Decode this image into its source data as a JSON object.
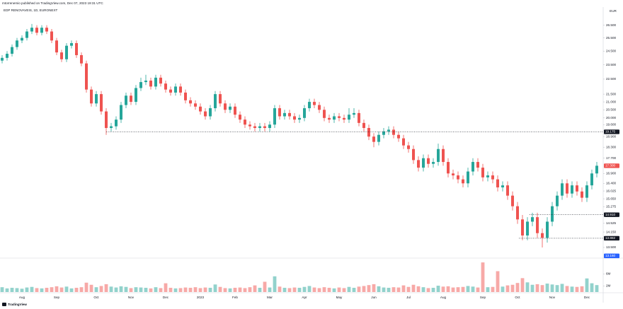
{
  "chart_data": {
    "type": "candlestick",
    "header": "mtorrenemio published on TradingView.com, Dec 07, 2023 19:31 UTC",
    "title": "EDP RENOVAVEIS, 1D, EURONEXT",
    "currency": "EUR",
    "logo": "TradingView",
    "log_scale": true,
    "grid": false,
    "up_color": "#26a69a",
    "down_color": "#ef5350",
    "categories": [
      null,
      null,
      null,
      null,
      "Aug",
      null,
      null,
      null,
      null,
      null,
      null,
      "Sep",
      null,
      null,
      null,
      null,
      null,
      null,
      null,
      "Oct",
      null,
      null,
      null,
      null,
      null,
      null,
      "Nov",
      null,
      null,
      null,
      null,
      null,
      null,
      "Dec",
      null,
      null,
      null,
      null,
      null,
      null,
      "2023",
      null,
      null,
      null,
      null,
      null,
      null,
      "Feb",
      null,
      null,
      null,
      null,
      null,
      null,
      "Mar",
      null,
      null,
      null,
      null,
      null,
      null,
      "Apr",
      null,
      null,
      null,
      null,
      null,
      null,
      "May",
      null,
      null,
      null,
      null,
      null,
      null,
      "Jun",
      null,
      null,
      null,
      null,
      null,
      null,
      "Jul",
      null,
      null,
      null,
      null,
      null,
      null,
      "Aug",
      null,
      null,
      null,
      null,
      null,
      null,
      null,
      "Sep",
      null,
      null,
      null,
      null,
      null,
      null,
      "Oct",
      null,
      null,
      null,
      null,
      null,
      null,
      "Nov",
      null,
      null,
      null,
      null,
      null,
      null,
      "Dec",
      null,
      null
    ],
    "open": [
      23.8,
      24.0,
      24.3,
      24.8,
      25.3,
      25.5,
      26.0,
      26.3,
      25.9,
      26.3,
      26.0,
      25.3,
      24.4,
      23.9,
      24.9,
      25.1,
      24.2,
      23.6,
      21.8,
      20.9,
      21.5,
      20.4,
      19.4,
      19.5,
      19.9,
      20.8,
      21.4,
      21.0,
      21.9,
      22.3,
      22.4,
      22.0,
      22.6,
      22.2,
      21.8,
      21.6,
      22.0,
      21.6,
      21.1,
      20.9,
      20.7,
      20.4,
      20.1,
      20.6,
      21.5,
      20.9,
      20.5,
      20.7,
      20.2,
      19.9,
      19.6,
      19.5,
      19.4,
      19.5,
      19.4,
      19.6,
      20.6,
      20.1,
      20.3,
      20.1,
      19.9,
      20.0,
      20.6,
      21.0,
      20.8,
      20.5,
      20.0,
      19.9,
      20.1,
      20.0,
      19.9,
      20.2,
      20.3,
      19.7,
      19.4,
      18.9,
      18.6,
      19.0,
      19.2,
      19.3,
      19.0,
      18.8,
      18.4,
      18.2,
      17.6,
      17.2,
      17.7,
      17.4,
      17.5,
      18.2,
      17.5,
      16.9,
      16.8,
      16.6,
      16.4,
      17.0,
      17.5,
      17.2,
      16.7,
      16.8,
      16.6,
      16.2,
      16.3,
      15.8,
      15.3,
      14.7,
      14.0,
      14.6,
      14.8,
      14.1,
      13.9,
      14.6,
      15.3,
      15.8,
      16.4,
      15.9,
      16.3,
      16.0,
      15.7,
      16.3,
      16.9
    ],
    "high": [
      24.2,
      24.5,
      25.0,
      25.5,
      25.7,
      26.2,
      26.6,
      26.5,
      26.5,
      26.5,
      26.2,
      25.5,
      24.6,
      25.1,
      25.3,
      25.3,
      24.4,
      23.8,
      22.0,
      21.7,
      21.7,
      20.6,
      19.7,
      20.1,
      21.0,
      21.6,
      21.6,
      22.1,
      22.6,
      22.8,
      22.6,
      22.8,
      22.8,
      22.4,
      22.0,
      22.2,
      22.2,
      21.8,
      21.3,
      21.1,
      20.9,
      20.6,
      20.8,
      21.7,
      21.7,
      21.1,
      20.9,
      20.9,
      20.4,
      20.1,
      19.8,
      19.7,
      19.7,
      19.7,
      19.8,
      20.8,
      20.8,
      20.5,
      20.5,
      20.3,
      20.2,
      20.8,
      21.2,
      21.2,
      21.0,
      20.7,
      20.2,
      20.3,
      20.3,
      20.2,
      20.6,
      20.6,
      20.5,
      19.9,
      19.6,
      19.1,
      19.2,
      19.4,
      19.5,
      19.5,
      19.2,
      19.0,
      18.6,
      18.4,
      17.8,
      17.9,
      17.9,
      17.7,
      18.5,
      18.4,
      17.7,
      17.1,
      17.0,
      16.8,
      17.2,
      17.7,
      17.7,
      17.4,
      17.0,
      17.0,
      16.8,
      16.5,
      16.5,
      16.0,
      15.5,
      14.9,
      14.8,
      15.0,
      15.0,
      14.3,
      14.8,
      15.5,
      16.0,
      16.6,
      16.6,
      16.5,
      16.5,
      16.2,
      16.5,
      17.1,
      17.5
    ],
    "low": [
      23.6,
      23.8,
      24.1,
      24.6,
      25.1,
      25.3,
      25.8,
      25.7,
      25.7,
      25.8,
      25.1,
      24.2,
      23.7,
      23.7,
      24.7,
      24.0,
      23.4,
      21.6,
      20.7,
      20.7,
      20.2,
      19.0,
      19.2,
      19.3,
      19.7,
      20.6,
      20.8,
      20.8,
      21.7,
      22.1,
      21.8,
      21.8,
      22.0,
      21.6,
      21.4,
      21.4,
      21.4,
      20.9,
      20.7,
      20.5,
      20.2,
      19.9,
      19.9,
      20.4,
      20.7,
      20.3,
      20.3,
      20.0,
      19.7,
      19.4,
      19.3,
      19.2,
      19.2,
      19.2,
      19.2,
      19.4,
      19.9,
      19.9,
      19.9,
      19.7,
      19.7,
      19.8,
      20.4,
      20.6,
      20.3,
      19.8,
      19.7,
      19.7,
      19.8,
      19.7,
      19.7,
      20.0,
      19.5,
      19.2,
      18.7,
      18.3,
      18.4,
      18.8,
      19.0,
      18.8,
      18.6,
      18.2,
      18.0,
      17.4,
      17.0,
      17.0,
      17.2,
      17.2,
      17.3,
      17.3,
      16.7,
      16.6,
      16.4,
      16.2,
      16.2,
      16.8,
      17.0,
      16.5,
      16.5,
      16.4,
      16.0,
      16.0,
      15.6,
      15.1,
      14.5,
      13.8,
      13.8,
      14.4,
      13.9,
      13.5,
      13.7,
      14.4,
      15.1,
      15.6,
      15.7,
      15.7,
      15.8,
      15.5,
      15.5,
      16.1,
      16.7
    ],
    "close": [
      24.0,
      24.3,
      24.8,
      25.3,
      25.5,
      26.0,
      26.3,
      25.9,
      26.3,
      26.0,
      25.3,
      24.4,
      23.9,
      24.9,
      25.1,
      24.2,
      23.6,
      21.8,
      20.9,
      21.5,
      20.4,
      19.4,
      19.5,
      19.9,
      20.8,
      21.4,
      21.0,
      21.9,
      22.3,
      22.4,
      22.0,
      22.6,
      22.2,
      21.8,
      21.6,
      22.0,
      21.6,
      21.1,
      20.9,
      20.7,
      20.4,
      20.1,
      20.6,
      21.5,
      20.9,
      20.5,
      20.7,
      20.2,
      19.9,
      19.6,
      19.5,
      19.4,
      19.5,
      19.4,
      19.6,
      20.6,
      20.1,
      20.3,
      20.1,
      19.9,
      20.0,
      20.6,
      21.0,
      20.8,
      20.5,
      20.0,
      19.9,
      20.1,
      20.0,
      19.9,
      20.2,
      20.3,
      19.7,
      19.4,
      18.9,
      18.6,
      19.0,
      19.2,
      19.3,
      19.0,
      18.8,
      18.4,
      18.2,
      17.6,
      17.2,
      17.7,
      17.4,
      17.5,
      18.2,
      17.5,
      16.9,
      16.8,
      16.6,
      16.4,
      17.0,
      17.5,
      17.2,
      16.7,
      16.8,
      16.6,
      16.2,
      16.3,
      15.8,
      15.3,
      14.7,
      14.0,
      14.6,
      14.8,
      14.1,
      13.9,
      14.6,
      15.3,
      15.8,
      16.4,
      15.9,
      16.3,
      16.0,
      15.7,
      16.3,
      16.9,
      17.3
    ],
    "volume": [
      1.6,
      1.2,
      1.4,
      1.3,
      1.1,
      1.5,
      1.7,
      1.3,
      1.2,
      1.4,
      1.6,
      1.9,
      1.5,
      1.8,
      1.2,
      1.4,
      1.6,
      3.1,
      2.4,
      1.6,
      2.0,
      2.6,
      1.8,
      1.5,
      1.9,
      1.7,
      1.3,
      1.6,
      1.5,
      1.4,
      1.2,
      1.6,
      1.3,
      2.9,
      1.4,
      1.2,
      1.3,
      1.5,
      1.4,
      1.6,
      1.3,
      1.5,
      1.4,
      2.5,
      1.7,
      1.3,
      1.2,
      1.4,
      1.5,
      1.3,
      1.6,
      2.2,
      1.4,
      3.4,
      1.5,
      5.2,
      1.8,
      1.4,
      1.3,
      1.5,
      1.4,
      1.7,
      2.0,
      1.5,
      1.3,
      1.6,
      1.4,
      1.2,
      1.5,
      1.3,
      1.7,
      1.4,
      1.8,
      2.0,
      2.3,
      2.6,
      1.9,
      1.5,
      1.4,
      1.6,
      1.5,
      2.2,
      1.7,
      2.4,
      1.9,
      1.6,
      1.3,
      1.4,
      2.1,
      1.8,
      1.9,
      1.5,
      1.6,
      1.7,
      2.0,
      1.8,
      1.5,
      9.8,
      1.6,
      1.7,
      6.9,
      1.8,
      2.2,
      2.4,
      3.0,
      4.6,
      3.2,
      2.4,
      2.6,
      2.3,
      2.8,
      2.5,
      2.3,
      2.7,
      2.0,
      1.8,
      1.7,
      1.9,
      4.5,
      2.9,
      2.3
    ],
    "ylim": [
      13.1,
      28
    ],
    "yticks": [
      {
        "value": 26.5,
        "label": "26.500"
      },
      {
        "value": 25.5,
        "label": "25.500"
      },
      {
        "value": 24.5,
        "label": "24.500"
      },
      {
        "value": 23.5,
        "label": "23.500"
      },
      {
        "value": 22.5,
        "label": "22.500"
      },
      {
        "value": 21.5,
        "label": "21.500"
      },
      {
        "value": 21,
        "label": "21.000"
      },
      {
        "value": 20.5,
        "label": "20.500"
      },
      {
        "value": 20,
        "label": "20.000"
      },
      {
        "value": 19.6,
        "label": "19.600"
      },
      {
        "value": 18.9,
        "label": "18.900"
      },
      {
        "value": 18.3,
        "label": "18.300"
      },
      {
        "value": 17.7,
        "label": "17.700"
      },
      {
        "value": 16.9,
        "label": "16.900"
      },
      {
        "value": 16.4,
        "label": "16.400"
      },
      16.025,
      {
        "value": 15.65,
        "label": "15.650"
      },
      15.275,
      14.525,
      {
        "value": 14.15,
        "label": "14.150"
      },
      {
        "value": 13.5,
        "label": "13.500"
      }
    ],
    "price_lines": [
      {
        "value": 19.175,
        "color": "#131722",
        "dotted": true
      },
      {
        "value": 14.91,
        "label": "14.910",
        "color": "#131722",
        "dotted": true
      },
      {
        "value": 13.882,
        "color": "#131722",
        "dotted": true
      },
      {
        "value": 17.3,
        "label": "17.300",
        "color": "#ef5350",
        "dotted": false
      },
      {
        "value": 13.16,
        "label": "13.160",
        "color": "#2962ff",
        "dotted": false
      }
    ],
    "volume_lim": [
      0,
      11
    ],
    "volume_ticks": [
      {
        "value": 6,
        "label": "6M"
      },
      {
        "value": 2,
        "label": "2M"
      }
    ]
  }
}
